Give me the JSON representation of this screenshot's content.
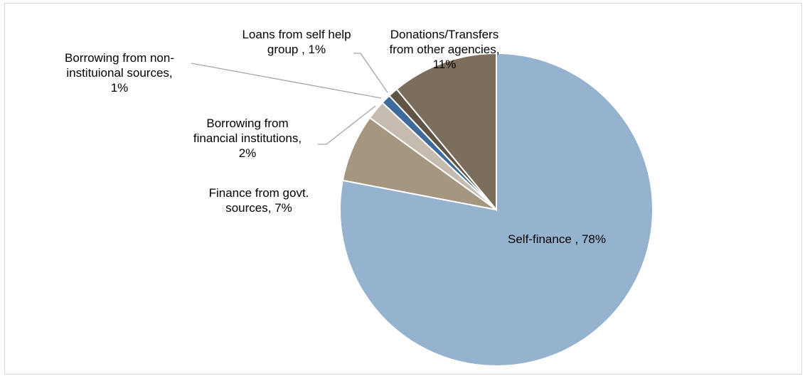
{
  "chart_data": {
    "type": "pie",
    "title": "",
    "legend": "none",
    "start_angle": "12 o'clock, clockwise",
    "slices": [
      {
        "label_lines": [
          "Self-finance , 78%"
        ],
        "value": 78,
        "color": "#95B3CF"
      },
      {
        "label_lines": [
          "Finance from govt.",
          "sources, 7%"
        ],
        "value": 7,
        "color": "#A5967F"
      },
      {
        "label_lines": [
          "Borrowing from",
          "financial institutions,",
          "2%"
        ],
        "value": 2,
        "color": "#C5BBAF"
      },
      {
        "label_lines": [
          "Borrowing from non-",
          "instituional sources,",
          "1%"
        ],
        "value": 1,
        "color": "#3E6A9C"
      },
      {
        "label_lines": [
          "Loans from self help",
          "group , 1%"
        ],
        "value": 1,
        "color": "#5F5446"
      },
      {
        "label_lines": [
          "Donations/Transfers",
          "from other agencies,",
          "11%"
        ],
        "value": 11,
        "color": "#7B6E5C"
      }
    ]
  }
}
